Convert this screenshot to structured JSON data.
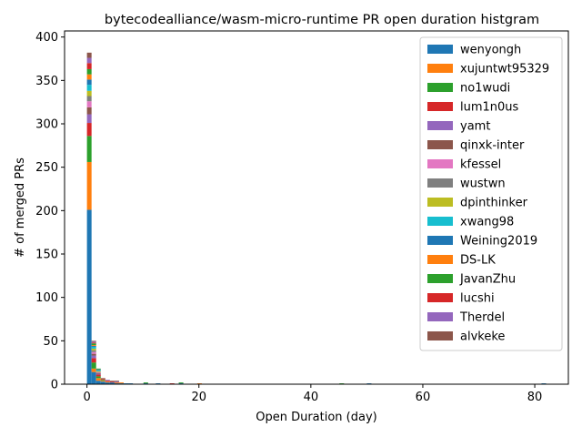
{
  "chart_data": {
    "type": "bar",
    "stacked": true,
    "title": "bytecodealliance/wasm-micro-runtime PR open duration histgram",
    "xlabel": "Open Duration (day)",
    "ylabel": "# of merged PRs",
    "xlim": [
      -4,
      86
    ],
    "ylim": [
      0,
      407
    ],
    "xticks": [
      0,
      20,
      40,
      60,
      80
    ],
    "yticks": [
      0,
      50,
      100,
      150,
      200,
      250,
      300,
      350,
      400
    ],
    "bin_width": 0.82,
    "x": [
      0,
      0.82,
      1.64,
      2.46,
      3.28,
      4.1,
      4.92,
      5.74,
      6.56,
      7.38,
      10.1,
      12.3,
      14.8,
      16.4,
      19.7,
      45.1,
      50.0,
      81.2
    ],
    "series": [
      {
        "name": "wenyongh",
        "color": "#1f77b4",
        "values": [
          201,
          14,
          4,
          3,
          2,
          2,
          1,
          1,
          1,
          1,
          1,
          1,
          0,
          1,
          0,
          0,
          1,
          1
        ]
      },
      {
        "name": "xujuntwt95329",
        "color": "#ff7f0e",
        "values": [
          55,
          4,
          3,
          1,
          1,
          0,
          1,
          1,
          0,
          0,
          0,
          0,
          0,
          0,
          1,
          0,
          0,
          0
        ]
      },
      {
        "name": "no1wudi",
        "color": "#2ca02c",
        "values": [
          30,
          7,
          2,
          1,
          0,
          0,
          0,
          0,
          0,
          0,
          1,
          0,
          0,
          1,
          0,
          1,
          0,
          0
        ]
      },
      {
        "name": "lum1n0us",
        "color": "#d62728",
        "values": [
          15,
          5,
          2,
          1,
          1,
          1,
          0,
          0,
          0,
          0,
          0,
          0,
          1,
          0,
          0,
          0,
          0,
          0
        ]
      },
      {
        "name": "yamt",
        "color": "#9467bd",
        "values": [
          10,
          3,
          1,
          0,
          1,
          0,
          1,
          0,
          0,
          0,
          0,
          0,
          0,
          0,
          0,
          0,
          0,
          0
        ]
      },
      {
        "name": "qinxk-inter",
        "color": "#8c564b",
        "values": [
          8,
          2,
          1,
          1,
          0,
          1,
          1,
          0,
          0,
          0,
          0,
          0,
          0,
          0,
          0,
          0,
          0,
          0
        ]
      },
      {
        "name": "kfessel",
        "color": "#e377c2",
        "values": [
          7,
          2,
          1,
          0,
          0,
          0,
          0,
          0,
          0,
          0,
          0,
          0,
          0,
          0,
          0,
          0,
          0,
          0
        ]
      },
      {
        "name": "wustwn",
        "color": "#7f7f7f",
        "values": [
          6,
          2,
          0,
          0,
          0,
          0,
          0,
          0,
          0,
          0,
          0,
          0,
          0,
          0,
          0,
          0,
          0,
          0
        ]
      },
      {
        "name": "dpinthinker",
        "color": "#bcbd22",
        "values": [
          6,
          2,
          1,
          0,
          0,
          0,
          0,
          0,
          0,
          0,
          0,
          0,
          0,
          0,
          0,
          0,
          0,
          0
        ]
      },
      {
        "name": "xwang98",
        "color": "#17becf",
        "values": [
          7,
          2,
          1,
          0,
          0,
          0,
          0,
          0,
          0,
          0,
          0,
          0,
          0,
          0,
          0,
          0,
          0,
          0
        ]
      },
      {
        "name": "Weining2019",
        "color": "#1f77b4",
        "values": [
          6,
          1,
          1,
          0,
          0,
          0,
          0,
          0,
          0,
          0,
          0,
          0,
          0,
          0,
          0,
          0,
          0,
          0
        ]
      },
      {
        "name": "DS-LK",
        "color": "#ff7f0e",
        "values": [
          6,
          1,
          0,
          0,
          0,
          0,
          0,
          0,
          0,
          0,
          0,
          0,
          0,
          0,
          0,
          0,
          0,
          0
        ]
      },
      {
        "name": "JavanZhu",
        "color": "#2ca02c",
        "values": [
          6,
          2,
          1,
          0,
          0,
          0,
          0,
          0,
          0,
          0,
          0,
          0,
          0,
          0,
          0,
          0,
          0,
          0
        ]
      },
      {
        "name": "lucshi",
        "color": "#d62728",
        "values": [
          7,
          1,
          0,
          0,
          0,
          0,
          0,
          0,
          0,
          0,
          0,
          0,
          0,
          0,
          0,
          0,
          0,
          0
        ]
      },
      {
        "name": "Therdel",
        "color": "#9467bd",
        "values": [
          6,
          1,
          0,
          0,
          0,
          0,
          0,
          0,
          0,
          0,
          0,
          0,
          0,
          0,
          0,
          0,
          0,
          0
        ]
      },
      {
        "name": "alvkeke",
        "color": "#8c564b",
        "values": [
          6,
          1,
          0,
          0,
          0,
          0,
          0,
          0,
          0,
          0,
          0,
          0,
          0,
          0,
          0,
          0,
          0,
          0
        ]
      }
    ],
    "legend_position": "top-right",
    "grid": false
  }
}
